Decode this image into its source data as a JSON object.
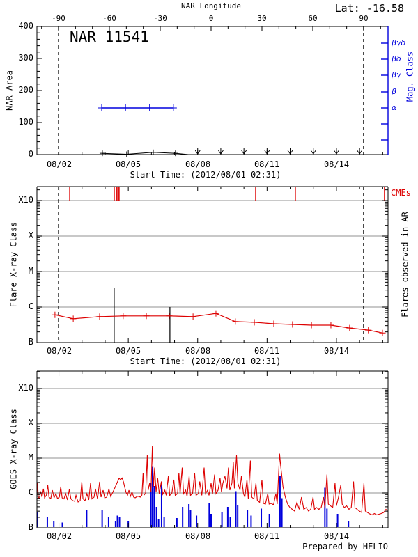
{
  "chart_data": [
    {
      "type": "line",
      "panel": "nar-area",
      "title": "NAR 11541",
      "lat_label": "Lat: -16.58",
      "top_axis": {
        "title": "NAR Longitude",
        "tick_labels": [
          "-90",
          "-60",
          "-30",
          "0",
          "30",
          "60",
          "90"
        ],
        "ticks_deg": [
          -90,
          -60,
          -30,
          0,
          30,
          60,
          90
        ],
        "range_deg": [
          -103,
          104
        ]
      },
      "y_axis": {
        "title": "NAR Area",
        "tick_labels": [
          "400",
          "300",
          "200",
          "100",
          "0"
        ],
        "ticks": [
          0,
          100,
          200,
          300,
          400
        ],
        "range": [
          0,
          400
        ]
      },
      "right_axis": {
        "title": "Mag. Class",
        "labels": [
          "βγδ",
          "βδ",
          "βγ",
          "β",
          "α"
        ],
        "tick_y": [
          62,
          85,
          108,
          132,
          155,
          178,
          201
        ]
      },
      "x_axis": {
        "title": "Start Time: (2012/08/01 02:31)",
        "tick_labels": [
          "08/02",
          "08/05",
          "08/08",
          "08/11",
          "08/14"
        ],
        "tick_days": [
          2,
          5,
          8,
          11,
          14
        ],
        "day_range": [
          1.05,
          16.23
        ]
      },
      "limb_crossing_days": [
        1.98,
        15.17
      ],
      "mag_class_series": {
        "class": "α",
        "level_index": 4,
        "days": [
          3.85,
          4.88,
          5.92,
          6.95
        ]
      },
      "area_series": {
        "points": [
          [
            3.88,
            4
          ],
          [
            4.93,
            1
          ],
          [
            6.08,
            7
          ],
          [
            7.04,
            4
          ],
          [
            7.6,
            0
          ]
        ],
        "marker_count": 4
      },
      "zero_arrow_days": [
        8,
        9,
        10,
        11,
        12,
        13,
        14,
        15
      ]
    },
    {
      "type": "line",
      "panel": "flare-xray-class",
      "y_axis": {
        "title": "Flare X-ray Class",
        "labels": [
          "X10",
          "X",
          "M",
          "C",
          "B"
        ]
      },
      "right_label": "Flares observed in AR",
      "cme_label": "CMEs",
      "cme_days": [
        2.47,
        4.39,
        4.51,
        4.6,
        10.51,
        12.22,
        16.08
      ],
      "flare_lines_day_class": [
        [
          4.39,
          1.53
        ],
        [
          6.8,
          1.0
        ]
      ],
      "flare_curve_day_class": [
        [
          1.83,
          0.78
        ],
        [
          2.62,
          0.67
        ],
        [
          3.76,
          0.73
        ],
        [
          4.78,
          0.75
        ],
        [
          5.78,
          0.75
        ],
        [
          6.77,
          0.75
        ],
        [
          7.8,
          0.73
        ],
        [
          8.79,
          0.82
        ],
        [
          9.63,
          0.59
        ],
        [
          10.45,
          0.57
        ],
        [
          11.29,
          0.53
        ],
        [
          12.1,
          0.51
        ],
        [
          12.92,
          0.49
        ],
        [
          13.76,
          0.49
        ],
        [
          14.57,
          0.41
        ],
        [
          15.38,
          0.35
        ],
        [
          15.99,
          0.27
        ]
      ],
      "class_scale_note": "0=B,1=C,2=M,3=X,4=X10 (log decades above B)",
      "limb_crossing_days": [
        1.98,
        15.17
      ],
      "x_axis": {
        "title": "Start Time: (2012/08/01 02:31)",
        "tick_labels": [
          "08/02",
          "08/05",
          "08/08",
          "08/11",
          "08/14"
        ],
        "tick_days": [
          2,
          5,
          8,
          11,
          14
        ],
        "day_range": [
          1.05,
          16.23
        ]
      }
    },
    {
      "type": "line",
      "panel": "goes-xray",
      "y_axis": {
        "title": "GOES X-ray Class",
        "labels": [
          "X10",
          "X",
          "M",
          "C",
          "B"
        ]
      },
      "credit": "Prepared by HELIO",
      "x_axis": {
        "title": "",
        "tick_labels": [
          "08/02",
          "08/05",
          "08/08",
          "08/11",
          "08/14"
        ],
        "tick_days": [
          2,
          5,
          8,
          11,
          14
        ],
        "day_range": [
          1.05,
          16.23
        ]
      },
      "goes_curve_day_class": [
        [
          1.05,
          0.9
        ],
        [
          1.08,
          1.28
        ],
        [
          1.11,
          0.88
        ],
        [
          1.16,
          0.84
        ],
        [
          1.2,
          1.05
        ],
        [
          1.27,
          0.88
        ],
        [
          1.33,
          1.12
        ],
        [
          1.38,
          0.86
        ],
        [
          1.46,
          0.94
        ],
        [
          1.52,
          1.22
        ],
        [
          1.57,
          0.88
        ],
        [
          1.65,
          0.84
        ],
        [
          1.72,
          1.08
        ],
        [
          1.79,
          0.86
        ],
        [
          1.87,
          0.98
        ],
        [
          1.94,
          0.84
        ],
        [
          2.02,
          0.88
        ],
        [
          2.08,
          1.18
        ],
        [
          2.14,
          0.86
        ],
        [
          2.22,
          0.83
        ],
        [
          2.29,
          0.98
        ],
        [
          2.37,
          0.8
        ],
        [
          2.45,
          1.1
        ],
        [
          2.52,
          0.83
        ],
        [
          2.6,
          0.78
        ],
        [
          2.68,
          0.76
        ],
        [
          2.74,
          0.93
        ],
        [
          2.83,
          0.74
        ],
        [
          2.92,
          0.78
        ],
        [
          2.99,
          1.32
        ],
        [
          3.04,
          0.83
        ],
        [
          3.13,
          0.78
        ],
        [
          3.21,
          0.98
        ],
        [
          3.29,
          0.8
        ],
        [
          3.37,
          1.28
        ],
        [
          3.43,
          0.83
        ],
        [
          3.52,
          0.88
        ],
        [
          3.58,
          1.12
        ],
        [
          3.67,
          0.83
        ],
        [
          3.76,
          1.32
        ],
        [
          3.82,
          0.88
        ],
        [
          3.91,
          1.08
        ],
        [
          3.98,
          0.86
        ],
        [
          4.07,
          0.88
        ],
        [
          4.16,
          1.12
        ],
        [
          4.24,
          0.9
        ],
        [
          4.33,
          1.02
        ],
        [
          4.42,
          1.15
        ],
        [
          4.52,
          1.3
        ],
        [
          4.6,
          1.42
        ],
        [
          4.67,
          1.38
        ],
        [
          4.73,
          1.43
        ],
        [
          4.79,
          1.32
        ],
        [
          4.85,
          1.15
        ],
        [
          4.91,
          1.0
        ],
        [
          4.97,
          0.94
        ],
        [
          5.03,
          1.08
        ],
        [
          5.09,
          0.9
        ],
        [
          5.16,
          1.03
        ],
        [
          5.23,
          0.88
        ],
        [
          5.3,
          0.86
        ],
        [
          5.38,
          0.9
        ],
        [
          5.45,
          0.9
        ],
        [
          5.52,
          0.88
        ],
        [
          5.59,
          0.94
        ],
        [
          5.64,
          1.58
        ],
        [
          5.68,
          0.94
        ],
        [
          5.75,
          0.99
        ],
        [
          5.82,
          2.08
        ],
        [
          5.86,
          1.08
        ],
        [
          5.92,
          1.28
        ],
        [
          5.98,
          1.03
        ],
        [
          6.04,
          2.35
        ],
        [
          6.09,
          1.18
        ],
        [
          6.14,
          1.73
        ],
        [
          6.2,
          1.03
        ],
        [
          6.27,
          1.43
        ],
        [
          6.34,
          0.98
        ],
        [
          6.43,
          1.33
        ],
        [
          6.49,
          0.96
        ],
        [
          6.58,
          1.08
        ],
        [
          6.64,
          0.93
        ],
        [
          6.73,
          1.48
        ],
        [
          6.79,
          0.93
        ],
        [
          6.88,
          0.98
        ],
        [
          6.97,
          1.38
        ],
        [
          7.03,
          0.93
        ],
        [
          7.13,
          0.98
        ],
        [
          7.19,
          1.58
        ],
        [
          7.24,
          0.98
        ],
        [
          7.33,
          1.73
        ],
        [
          7.39,
          0.98
        ],
        [
          7.48,
          1.08
        ],
        [
          7.54,
          0.9
        ],
        [
          7.63,
          1.48
        ],
        [
          7.69,
          0.93
        ],
        [
          7.78,
          0.98
        ],
        [
          7.87,
          1.58
        ],
        [
          7.93,
          0.93
        ],
        [
          8.03,
          0.98
        ],
        [
          8.09,
          1.33
        ],
        [
          8.18,
          0.93
        ],
        [
          8.28,
          1.73
        ],
        [
          8.34,
          0.98
        ],
        [
          8.43,
          1.08
        ],
        [
          8.49,
          0.93
        ],
        [
          8.58,
          1.28
        ],
        [
          8.64,
          0.96
        ],
        [
          8.73,
          1.53
        ],
        [
          8.79,
          0.98
        ],
        [
          8.88,
          1.08
        ],
        [
          8.97,
          1.43
        ],
        [
          9.03,
          1.03
        ],
        [
          9.09,
          1.28
        ],
        [
          9.18,
          1.48
        ],
        [
          9.27,
          1.13
        ],
        [
          9.33,
          1.73
        ],
        [
          9.39,
          1.08
        ],
        [
          9.48,
          1.28
        ],
        [
          9.54,
          1.88
        ],
        [
          9.59,
          1.13
        ],
        [
          9.68,
          2.08
        ],
        [
          9.74,
          1.28
        ],
        [
          9.83,
          1.08
        ],
        [
          9.89,
          1.48
        ],
        [
          9.98,
          0.98
        ],
        [
          10.04,
          0.88
        ],
        [
          10.13,
          1.38
        ],
        [
          10.19,
          0.84
        ],
        [
          10.28,
          1.93
        ],
        [
          10.34,
          0.88
        ],
        [
          10.43,
          0.83
        ],
        [
          10.52,
          1.28
        ],
        [
          10.58,
          0.78
        ],
        [
          10.68,
          0.73
        ],
        [
          10.78,
          1.38
        ],
        [
          10.84,
          0.7
        ],
        [
          10.93,
          0.68
        ],
        [
          11.03,
          0.98
        ],
        [
          11.09,
          0.68
        ],
        [
          11.18,
          0.7
        ],
        [
          11.28,
          0.66
        ],
        [
          11.38,
          0.98
        ],
        [
          11.44,
          0.68
        ],
        [
          11.54,
          2.13
        ],
        [
          11.59,
          1.78
        ],
        [
          11.64,
          1.48
        ],
        [
          11.69,
          1.18
        ],
        [
          11.79,
          0.88
        ],
        [
          11.89,
          0.68
        ],
        [
          11.99,
          0.58
        ],
        [
          12.09,
          0.53
        ],
        [
          12.19,
          0.48
        ],
        [
          12.29,
          0.73
        ],
        [
          12.39,
          0.53
        ],
        [
          12.49,
          0.88
        ],
        [
          12.59,
          0.53
        ],
        [
          12.69,
          0.58
        ],
        [
          12.79,
          0.48
        ],
        [
          12.89,
          0.53
        ],
        [
          12.99,
          0.88
        ],
        [
          13.05,
          0.53
        ],
        [
          13.14,
          0.58
        ],
        [
          13.24,
          0.53
        ],
        [
          13.34,
          0.58
        ],
        [
          13.44,
          0.88
        ],
        [
          13.5,
          0.58
        ],
        [
          13.59,
          1.53
        ],
        [
          13.65,
          0.68
        ],
        [
          13.74,
          0.63
        ],
        [
          13.84,
          0.58
        ],
        [
          13.94,
          1.28
        ],
        [
          14.0,
          0.63
        ],
        [
          14.09,
          0.88
        ],
        [
          14.19,
          1.23
        ],
        [
          14.25,
          0.68
        ],
        [
          14.34,
          0.58
        ],
        [
          14.44,
          0.63
        ],
        [
          14.54,
          0.53
        ],
        [
          14.64,
          0.58
        ],
        [
          14.74,
          1.33
        ],
        [
          14.8,
          0.58
        ],
        [
          14.89,
          0.53
        ],
        [
          14.99,
          0.48
        ],
        [
          15.09,
          0.44
        ],
        [
          15.19,
          1.28
        ],
        [
          15.25,
          0.48
        ],
        [
          15.34,
          0.44
        ],
        [
          15.44,
          0.4
        ],
        [
          15.54,
          0.37
        ],
        [
          15.64,
          0.41
        ],
        [
          15.74,
          0.37
        ],
        [
          15.84,
          0.39
        ],
        [
          15.94,
          0.41
        ],
        [
          16.04,
          0.44
        ],
        [
          16.14,
          0.53
        ],
        [
          16.2,
          0.48
        ]
      ],
      "event_bars_day_class": [
        [
          1.07,
          0.45
        ],
        [
          1.5,
          0.3
        ],
        [
          1.78,
          0.2
        ],
        [
          2.15,
          0.15
        ],
        [
          3.2,
          0.5
        ],
        [
          3.87,
          0.52
        ],
        [
          4.15,
          0.3
        ],
        [
          4.45,
          0.18
        ],
        [
          4.53,
          0.35
        ],
        [
          4.62,
          0.3
        ],
        [
          5.0,
          0.2
        ],
        [
          5.98,
          1.3
        ],
        [
          6.05,
          1.75
        ],
        [
          6.12,
          1.2
        ],
        [
          6.22,
          0.6
        ],
        [
          6.31,
          0.25
        ],
        [
          6.44,
          1.3
        ],
        [
          6.55,
          0.3
        ],
        [
          7.1,
          0.28
        ],
        [
          7.35,
          0.6
        ],
        [
          7.62,
          0.68
        ],
        [
          7.69,
          0.5
        ],
        [
          7.95,
          0.35
        ],
        [
          8.5,
          0.7
        ],
        [
          8.58,
          0.4
        ],
        [
          9.05,
          0.45
        ],
        [
          9.3,
          0.6
        ],
        [
          9.41,
          0.3
        ],
        [
          9.65,
          1.05
        ],
        [
          9.73,
          0.65
        ],
        [
          10.15,
          0.5
        ],
        [
          10.31,
          0.35
        ],
        [
          10.75,
          0.55
        ],
        [
          11.1,
          0.4
        ],
        [
          11.56,
          1.5
        ],
        [
          11.64,
          0.85
        ],
        [
          13.5,
          1.15
        ],
        [
          13.59,
          0.55
        ],
        [
          14.05,
          0.4
        ],
        [
          14.52,
          0.2
        ]
      ]
    }
  ],
  "colors": {
    "data_red": "#dd0000",
    "axis_blue": "#0000dd",
    "grid_gray": "#a8a8a8",
    "black": "#000000"
  }
}
